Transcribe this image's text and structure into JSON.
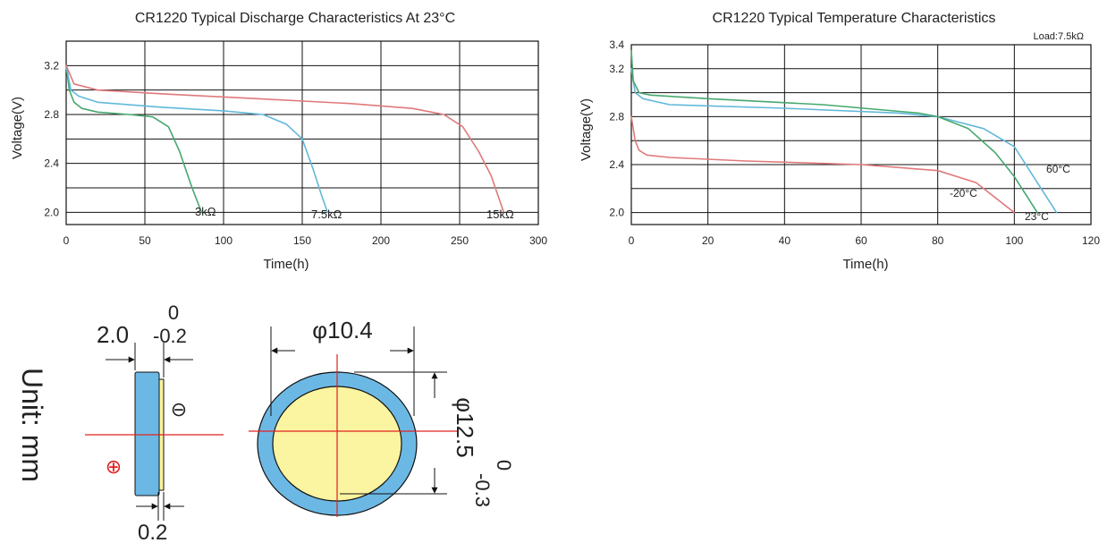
{
  "chart_data": [
    {
      "type": "line",
      "title": "CR1220 Typical Discharge Characteristics At 23°C",
      "xlabel": "Time(h)",
      "ylabel": "Voltage(V)",
      "xlim": [
        0,
        300
      ],
      "ylim": [
        1.9,
        3.4
      ],
      "xticks": [
        "0",
        "50",
        "100",
        "150",
        "200",
        "250",
        "300"
      ],
      "yticks": [
        "2.0",
        "2.4",
        "2.8",
        "3.2"
      ],
      "grid": true,
      "colors": {
        "3k": "#46a86e",
        "7.5k": "#62b8da",
        "15k": "#e0797b"
      },
      "series": [
        {
          "name": "3kΩ",
          "x": [
            0,
            2,
            5,
            10,
            20,
            40,
            55,
            65,
            72,
            80,
            86
          ],
          "y": [
            3.2,
            3.0,
            2.9,
            2.85,
            2.82,
            2.8,
            2.78,
            2.7,
            2.5,
            2.2,
            2.0
          ]
        },
        {
          "name": "7.5kΩ",
          "x": [
            0,
            3,
            8,
            20,
            60,
            100,
            125,
            140,
            150,
            157,
            162,
            166
          ],
          "y": [
            3.2,
            3.0,
            2.95,
            2.9,
            2.86,
            2.83,
            2.8,
            2.72,
            2.6,
            2.35,
            2.15,
            2.0
          ]
        },
        {
          "name": "15kΩ",
          "x": [
            0,
            5,
            20,
            60,
            120,
            180,
            220,
            240,
            252,
            262,
            270,
            278
          ],
          "y": [
            3.2,
            3.05,
            3.0,
            2.97,
            2.93,
            2.89,
            2.85,
            2.8,
            2.7,
            2.5,
            2.3,
            2.0
          ]
        }
      ]
    },
    {
      "type": "line",
      "title": "CR1220 Typical Temperature Characteristics",
      "annotation": "Load:7.5kΩ",
      "xlabel": "Time(h)",
      "ylabel": "Voltage(V)",
      "xlim": [
        0,
        120
      ],
      "ylim": [
        1.9,
        3.4
      ],
      "xticks": [
        "0",
        "20",
        "40",
        "60",
        "80",
        "100",
        "120"
      ],
      "yticks": [
        "2.0",
        "2.4",
        "2.8",
        "3.2",
        "3.4"
      ],
      "grid": true,
      "colors": {
        "-20": "#46a86e",
        "60": "#62b8da",
        "23": "#e0797b"
      },
      "series": [
        {
          "name": "-20°C",
          "x": [
            0,
            1,
            2,
            4,
            10,
            30,
            60,
            80,
            90,
            96,
            100
          ],
          "y": [
            2.8,
            2.6,
            2.52,
            2.48,
            2.46,
            2.43,
            2.4,
            2.35,
            2.25,
            2.1,
            2.0
          ]
        },
        {
          "name": "60°C",
          "x": [
            0,
            1,
            3,
            10,
            40,
            70,
            80,
            92,
            100,
            106,
            111
          ],
          "y": [
            3.2,
            3.0,
            2.95,
            2.9,
            2.87,
            2.83,
            2.8,
            2.7,
            2.55,
            2.25,
            2.0
          ]
        },
        {
          "name": "23°C",
          "x": [
            0,
            0.5,
            2,
            5,
            20,
            50,
            75,
            80,
            88,
            95,
            100,
            106
          ],
          "y": [
            3.35,
            3.1,
            3.0,
            2.98,
            2.95,
            2.9,
            2.83,
            2.8,
            2.7,
            2.5,
            2.3,
            2.0
          ]
        }
      ]
    }
  ],
  "drawing": {
    "unit_label": "Unit: mm",
    "thickness_nominal": "2.0",
    "thickness_upper": "0",
    "thickness_lower": "-0.2",
    "terminal_thickness": "0.2",
    "inner_diameter": "φ10.4",
    "outer_diameter": "φ12.5",
    "outer_upper": "0",
    "outer_lower": "-0.3",
    "plus_symbol": "⊕",
    "minus_symbol": "⊖",
    "colors": {
      "shell": "#6cb8e4",
      "face": "#fbf4a0",
      "axis": "#e02020",
      "line": "#111111"
    }
  }
}
